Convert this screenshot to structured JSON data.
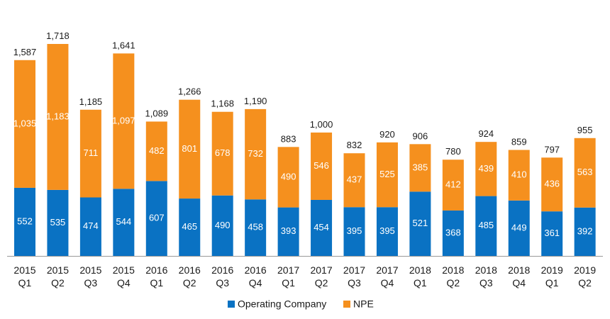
{
  "chart_data": {
    "type": "bar",
    "stacked": true,
    "categories": [
      [
        "2015",
        "Q1"
      ],
      [
        "2015",
        "Q2"
      ],
      [
        "2015",
        "Q3"
      ],
      [
        "2015",
        "Q4"
      ],
      [
        "2016",
        "Q1"
      ],
      [
        "2016",
        "Q2"
      ],
      [
        "2016",
        "Q3"
      ],
      [
        "2016",
        "Q4"
      ],
      [
        "2017",
        "Q1"
      ],
      [
        "2017",
        "Q2"
      ],
      [
        "2017",
        "Q3"
      ],
      [
        "2017",
        "Q4"
      ],
      [
        "2018",
        "Q1"
      ],
      [
        "2018",
        "Q2"
      ],
      [
        "2018",
        "Q3"
      ],
      [
        "2018",
        "Q4"
      ],
      [
        "2019",
        "Q1"
      ],
      [
        "2019",
        "Q2"
      ]
    ],
    "series": [
      {
        "name": "Operating Company",
        "color": "#0a72c3",
        "values": [
          552,
          535,
          474,
          544,
          607,
          465,
          490,
          458,
          393,
          454,
          395,
          395,
          521,
          368,
          485,
          449,
          361,
          392
        ],
        "labels": [
          "552",
          "535",
          "474",
          "544",
          "607",
          "465",
          "490",
          "458",
          "393",
          "454",
          "395",
          "395",
          "521",
          "368",
          "485",
          "449",
          "361",
          "392"
        ]
      },
      {
        "name": "NPE",
        "color": "#f5901e",
        "values": [
          1035,
          1183,
          711,
          1097,
          482,
          801,
          678,
          732,
          490,
          546,
          437,
          525,
          385,
          412,
          439,
          410,
          436,
          563
        ],
        "labels": [
          "1,035",
          "1,183",
          "711",
          "1,097",
          "482",
          "801",
          "678",
          "732",
          "490",
          "546",
          "437",
          "525",
          "385",
          "412",
          "439",
          "410",
          "436",
          "563"
        ]
      }
    ],
    "totals": [
      1587,
      1718,
      1185,
      1641,
      1089,
      1266,
      1168,
      1190,
      883,
      1000,
      832,
      920,
      906,
      780,
      924,
      859,
      797,
      955
    ],
    "total_labels": [
      "1,587",
      "1,718",
      "1,185",
      "1,641",
      "1,089",
      "1,266",
      "1,168",
      "1,190",
      "883",
      "1,000",
      "832",
      "920",
      "906",
      "780",
      "924",
      "859",
      "797",
      "955"
    ],
    "title": "",
    "xlabel": "",
    "ylabel": "",
    "ylim": [
      0,
      1800
    ],
    "grid": false,
    "legend_position": "bottom-center"
  }
}
